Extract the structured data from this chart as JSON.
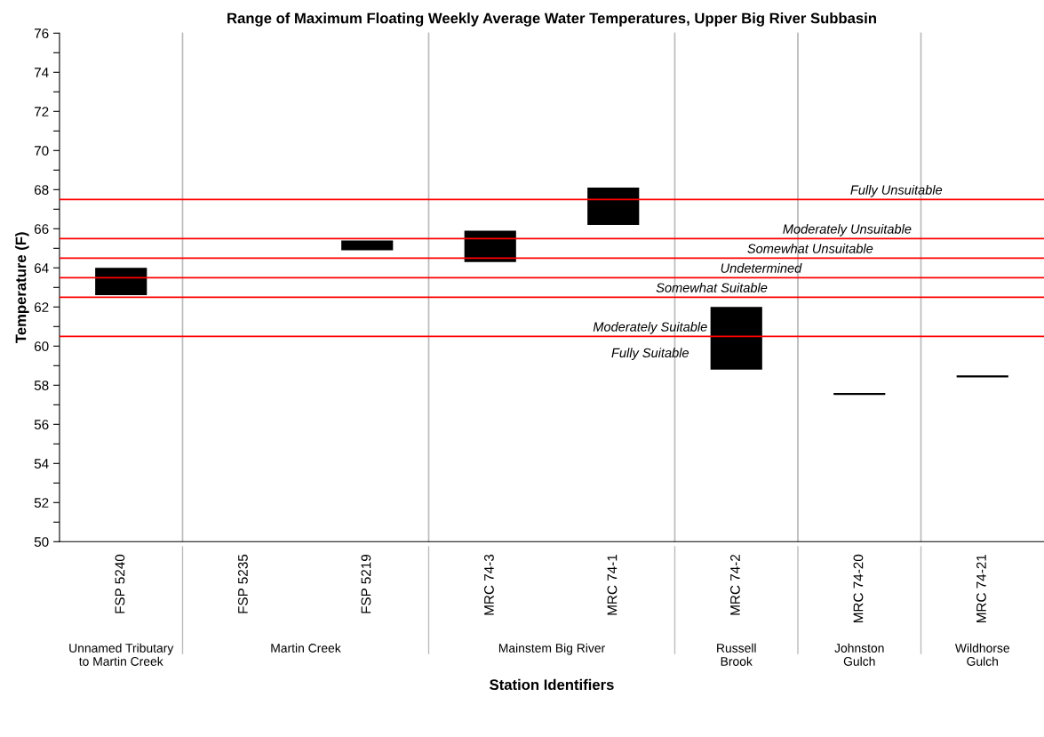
{
  "chart_data": {
    "type": "bar",
    "title": "Range of Maximum Floating Weekly Average Water Temperatures, Upper Big River Subbasin",
    "xlabel": "Station Identifiers",
    "ylabel": "Temperature (F)",
    "categories": [
      "FSP 5240",
      "FSP 5235",
      "FSP 5219",
      "MRC 74-3",
      "MRC 74-1",
      "MRC 74-2",
      "MRC 74-20",
      "MRC 74-21"
    ],
    "base": [
      62.6,
      null,
      64.9,
      64.3,
      66.2,
      58.8,
      57.5,
      58.4
    ],
    "values": [
      1.4,
      null,
      0.5,
      1.6,
      1.9,
      3.2,
      0.1,
      0.1
    ],
    "color": "#000000",
    "ylim": [
      50,
      76
    ],
    "yticks": [
      50,
      {
        "value": 51,
        "label": null
      },
      52,
      {
        "value": 53,
        "label": null
      },
      54,
      {
        "value": 55,
        "label": null
      },
      56,
      {
        "value": 57,
        "label": null
      },
      58,
      {
        "value": 59,
        "label": null
      },
      60,
      {
        "value": 61,
        "label": null
      },
      62,
      {
        "value": 63,
        "label": null
      },
      64,
      {
        "value": 65,
        "label": null
      },
      66,
      {
        "value": 67,
        "label": null
      },
      68,
      {
        "value": 69,
        "label": null
      },
      70,
      {
        "value": 71,
        "label": null
      },
      72,
      {
        "value": 73,
        "label": null
      },
      74,
      {
        "value": 75,
        "label": null
      },
      76
    ],
    "ref_lines": [
      {
        "axis": "y",
        "value": 67.5,
        "label": "Fully Unsuitable",
        "color": "#ff0000"
      },
      {
        "axis": "y",
        "value": 65.5,
        "label": "Moderately Unsuitable",
        "color": "#ff0000"
      },
      {
        "axis": "y",
        "value": 64.5,
        "label": "Somewhat Unsuitable",
        "color": "#ff0000"
      },
      {
        "axis": "y",
        "value": 63.5,
        "label": "Undetermined",
        "color": "#ff0000"
      },
      {
        "axis": "y",
        "value": 62.5,
        "label": "Somewhat Suitable",
        "color": "#ff0000"
      },
      {
        "axis": "y",
        "value": 60.5,
        "label": "Moderately Suitable",
        "color": "#ff0000"
      }
    ],
    "annotations": [
      "Fully Suitable",
      "Unnamed Tributary\nto Martin Creek",
      "Martin Creek",
      "Mainstem Big River",
      "Russell\nBrook",
      "Johnston\nGulch",
      "Wildhorse\nGulch"
    ],
    "grid": false,
    "legend": false
  }
}
